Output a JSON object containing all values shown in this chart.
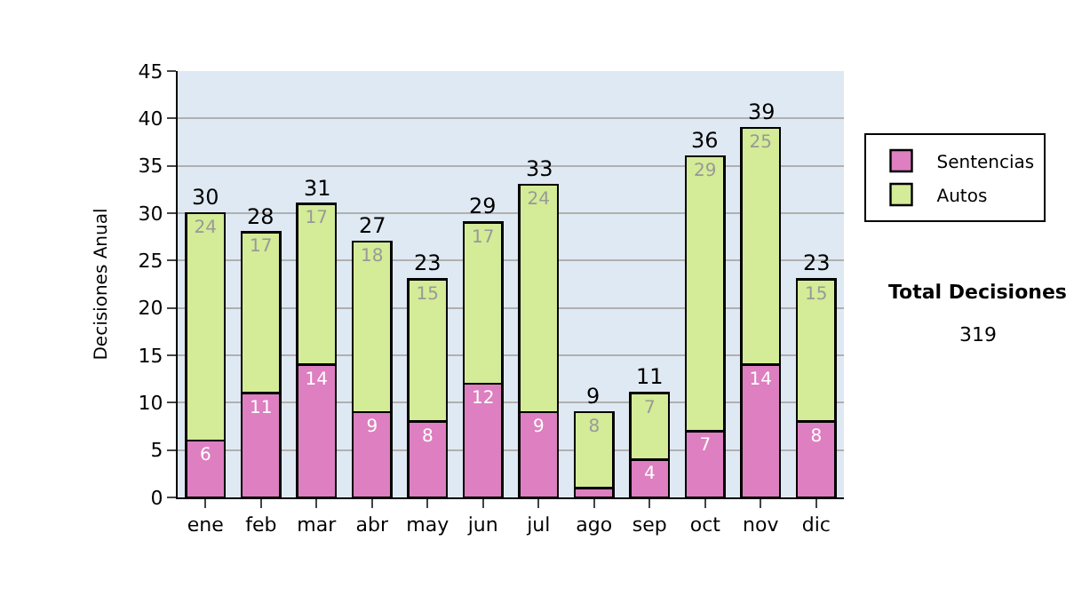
{
  "chart_data": {
    "type": "bar",
    "stacked": true,
    "ylabel": "Decisiones Anual",
    "categories": [
      "ene",
      "feb",
      "mar",
      "abr",
      "may",
      "jun",
      "jul",
      "ago",
      "sep",
      "oct",
      "nov",
      "dic"
    ],
    "series": [
      {
        "name": "Sentencias",
        "color": "#dd7fc0",
        "values": [
          6,
          11,
          14,
          9,
          8,
          12,
          9,
          1,
          4,
          7,
          14,
          8
        ],
        "value_labels": [
          "6",
          "11",
          "14",
          "9",
          "8",
          "12",
          "9",
          null,
          "4",
          "7",
          "14",
          "8"
        ]
      },
      {
        "name": "Autos",
        "color": "#d4eb97",
        "values": [
          24,
          17,
          17,
          18,
          15,
          17,
          24,
          8,
          7,
          29,
          25,
          15
        ],
        "value_labels": [
          "24",
          "17",
          "17",
          "18",
          "15",
          "17",
          "24",
          "8",
          "7",
          "29",
          "25",
          "15"
        ]
      }
    ],
    "totals": [
      "30",
      "28",
      "31",
      "27",
      "23",
      "29",
      "33",
      "9",
      "11",
      "36",
      "39",
      "23"
    ],
    "ylim": [
      0,
      45
    ],
    "yticks": [
      0,
      5,
      10,
      15,
      20,
      25,
      30,
      35,
      40,
      45
    ],
    "grid": "y",
    "legend": "right",
    "annotations": [
      "Total Decisiones",
      "319"
    ]
  }
}
